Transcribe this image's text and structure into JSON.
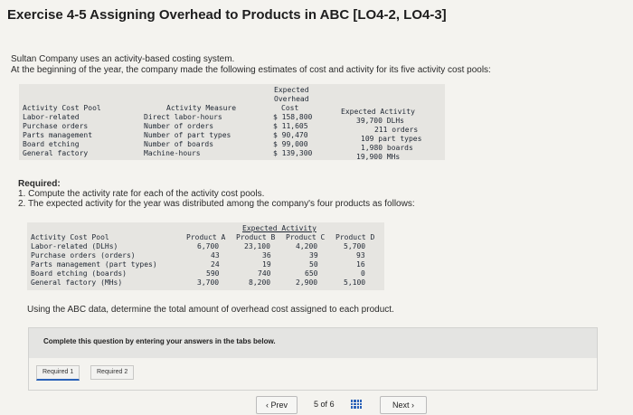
{
  "title": "Exercise 4-5 Assigning Overhead to Products in ABC [LO4-2, LO4-3]",
  "intro": [
    "Sultan Company uses an activity-based costing system.",
    "At the beginning of the year, the company made the following estimates of cost and activity for its five activity cost pools:"
  ],
  "table1": {
    "header_cost": [
      "Expected",
      "Overhead",
      "Cost"
    ],
    "header_pool": "Activity Cost Pool",
    "header_measure": "Activity Measure",
    "header_activity": "Expected Activity",
    "rows": [
      {
        "pool": "Labor-related",
        "measure": "Direct labor-hours",
        "cost": "$ 158,800",
        "activity": "39,700 DLHs"
      },
      {
        "pool": "Purchase orders",
        "measure": "Number of orders",
        "cost": "$  11,605",
        "activity": "211 orders"
      },
      {
        "pool": "Parts management",
        "measure": "Number of part types",
        "cost": "$  90,470",
        "activity": "109 part types"
      },
      {
        "pool": "Board etching",
        "measure": "Number of boards",
        "cost": "$  99,000",
        "activity": "1,980 boards"
      },
      {
        "pool": "General factory",
        "measure": "Machine-hours",
        "cost": "$ 139,300",
        "activity": "19,900 MHs"
      }
    ]
  },
  "required": {
    "heading": "Required:",
    "items": [
      "1. Compute the activity rate for each of the activity cost pools.",
      "2. The expected activity for the year was distributed among the company's four products as follows:"
    ]
  },
  "table2": {
    "group_header": "Expected Activity",
    "header_pool": "Activity Cost Pool",
    "columns": [
      "Product A",
      "Product B",
      "Product C",
      "Product D"
    ],
    "rows": [
      {
        "pool": "Labor-related (DLHs)",
        "values": [
          "6,700",
          "23,100",
          "4,200",
          "5,700"
        ]
      },
      {
        "pool": "Purchase orders (orders)",
        "values": [
          "43",
          "36",
          "39",
          "93"
        ]
      },
      {
        "pool": "Parts management (part types)",
        "values": [
          "24",
          "19",
          "50",
          "16"
        ]
      },
      {
        "pool": "Board etching (boards)",
        "values": [
          "590",
          "740",
          "650",
          "0"
        ]
      },
      {
        "pool": "General factory (MHs)",
        "values": [
          "3,700",
          "8,200",
          "2,900",
          "5,100"
        ]
      }
    ]
  },
  "using_text": "Using the ABC data, determine the total amount of overhead cost assigned to each product.",
  "instruction": "Complete this question by entering your answers in the tabs below.",
  "tabs": [
    "Required 1",
    "Required 2"
  ],
  "nav": {
    "prev": "Prev",
    "page": "5",
    "of": "of",
    "total": "6",
    "next": "Next"
  },
  "colors": {
    "accent": "#2b62b8"
  }
}
